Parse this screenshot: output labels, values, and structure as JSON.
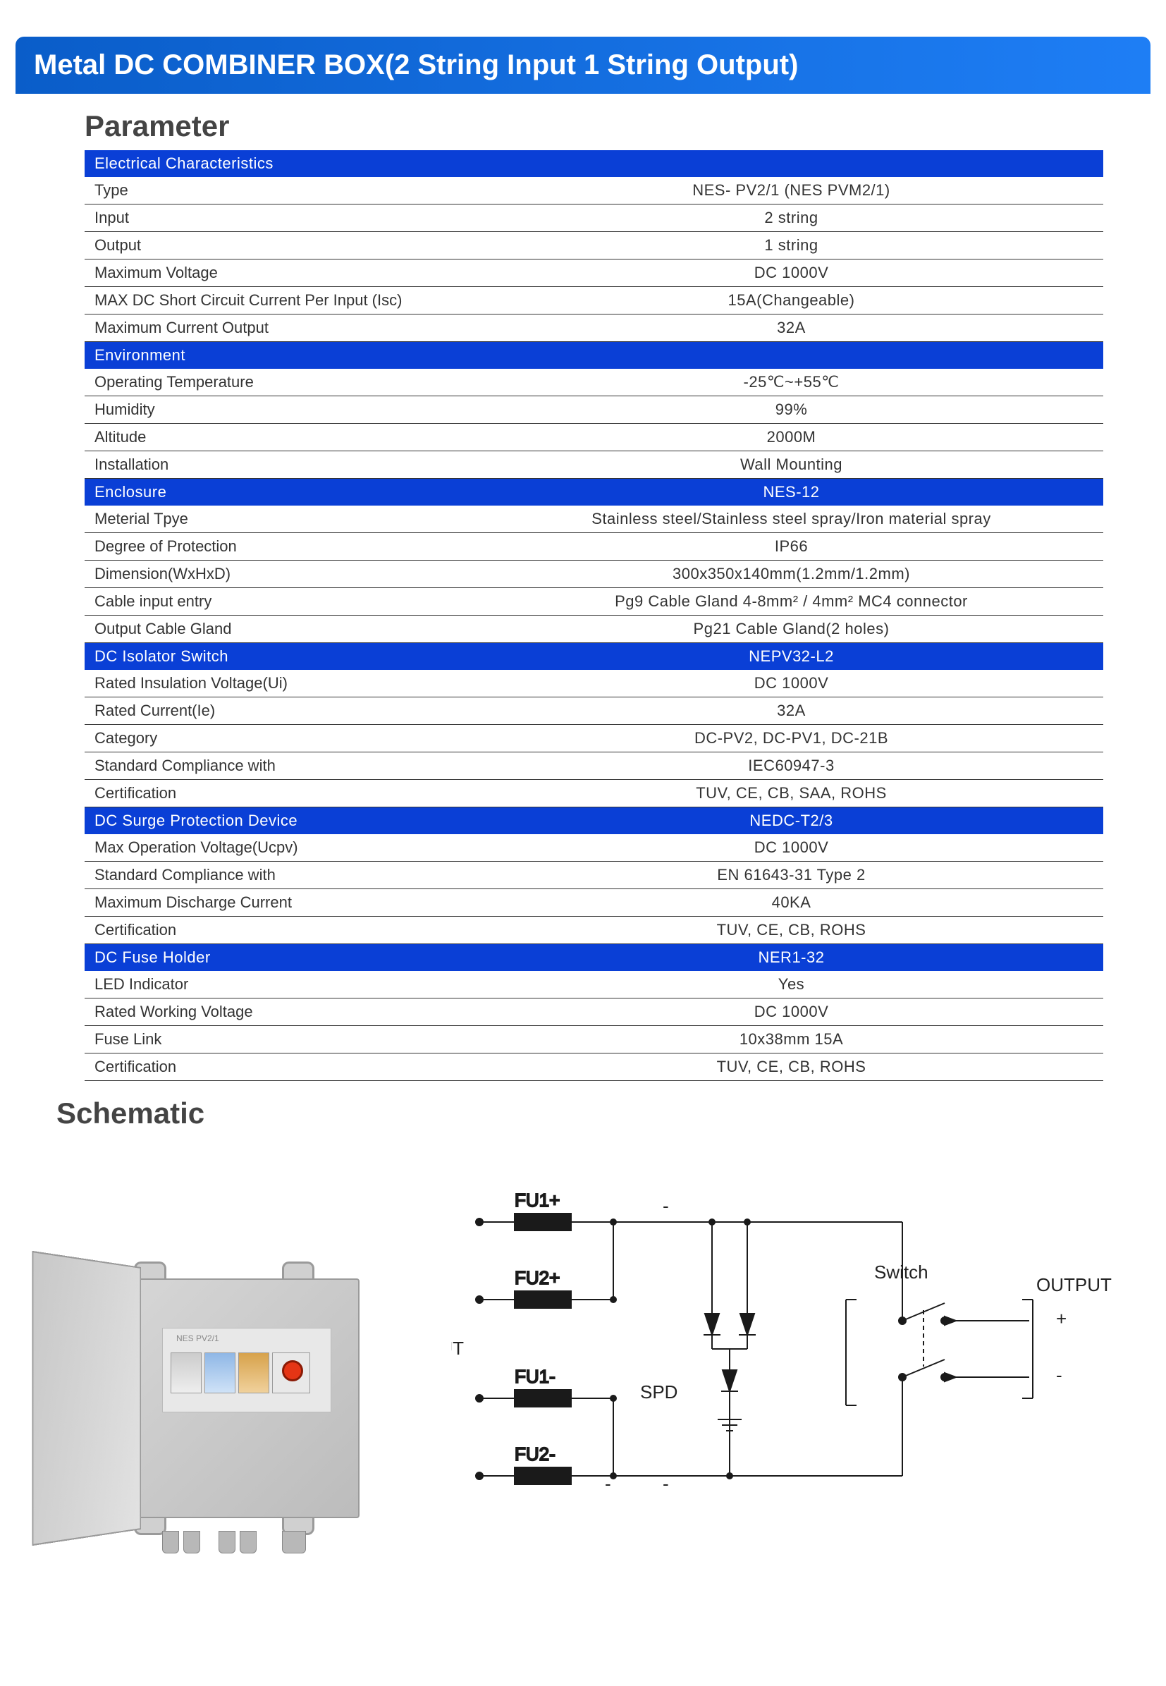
{
  "title": "Metal DC COMBINER BOX(2 String Input 1 String Output)",
  "headings": {
    "parameter": "Parameter",
    "schematic": "Schematic"
  },
  "colors": {
    "title_bg_start": "#0a5dc9",
    "title_bg_end": "#1e7ef5",
    "category_bg": "#0a3fd6",
    "category_fg": "#ffffff",
    "row_border": "#333333",
    "text": "#333333",
    "page_bg": "#ffffff"
  },
  "sections": [
    {
      "category": "Electrical Characteristics",
      "category_right": "",
      "rows": [
        {
          "label": "Type",
          "value": "NES- PV2/1 (NES PVM2/1)"
        },
        {
          "label": "Input",
          "value": "2 string"
        },
        {
          "label": "Output",
          "value": "1 string"
        },
        {
          "label": "Maximum Voltage",
          "value": "DC 1000V"
        },
        {
          "label": "MAX DC Short Circuit Current Per Input (Isc)",
          "value": "15A(Changeable)"
        },
        {
          "label": "Maximum Current Output",
          "value": "32A"
        }
      ]
    },
    {
      "category": "Environment",
      "category_right": "",
      "rows": [
        {
          "label": "Operating Temperature",
          "value": "-25℃~+55℃"
        },
        {
          "label": "Humidity",
          "value": "99%"
        },
        {
          "label": "Altitude",
          "value": "2000M"
        },
        {
          "label": "Installation",
          "value": "Wall Mounting"
        }
      ]
    },
    {
      "category": "Enclosure",
      "category_right": "NES-12",
      "rows": [
        {
          "label": "Meterial Tpye",
          "value": "Stainless steel/Stainless steel spray/Iron material spray"
        },
        {
          "label": "Degree of Protection",
          "value": "IP66"
        },
        {
          "label": "Dimension(WxHxD)",
          "value": "300x350x140mm(1.2mm/1.2mm)"
        },
        {
          "label": "Cable input entry",
          "value": "Pg9 Cable Gland 4-8mm² / 4mm² MC4 connector"
        },
        {
          "label": "Output Cable Gland",
          "value": "Pg21 Cable Gland(2 holes)"
        }
      ]
    },
    {
      "category": "DC Isolator Switch",
      "category_right": "NEPV32-L2",
      "rows": [
        {
          "label": "Rated Insulation Voltage(Ui)",
          "value": "DC 1000V"
        },
        {
          "label": "Rated Current(Ie)",
          "value": "32A"
        },
        {
          "label": "Category",
          "value": "DC-PV2, DC-PV1, DC-21B"
        },
        {
          "label": "Standard Compliance with",
          "value": "IEC60947-3"
        },
        {
          "label": "Certification",
          "value": "TUV, CE, CB, SAA, ROHS"
        }
      ]
    },
    {
      "category": "DC Surge Protection Device",
      "category_right": "NEDC-T2/3",
      "rows": [
        {
          "label": "Max Operation Voltage(Ucpv)",
          "value": "DC 1000V"
        },
        {
          "label": "Standard Compliance with",
          "value": "EN 61643-31 Type 2"
        },
        {
          "label": "Maximum Discharge Current",
          "value": "40KA"
        },
        {
          "label": "Certification",
          "value": "TUV, CE, CB, ROHS"
        }
      ]
    },
    {
      "category": "DC Fuse Holder",
      "category_right": "NER1-32",
      "rows": [
        {
          "label": "LED Indicator",
          "value": "Yes"
        },
        {
          "label": "Rated Working Voltage",
          "value": "DC 1000V"
        },
        {
          "label": "Fuse Link",
          "value": "10x38mm 15A"
        },
        {
          "label": "Certification",
          "value": "TUV, CE, CB, ROHS"
        }
      ]
    }
  ],
  "schematic": {
    "input_label": "INPUT",
    "spd_label": "SPD",
    "switch_label": "Switch",
    "output_label": "OUTPUT",
    "fuses": [
      "FU1+",
      "FU2+",
      "FU1-",
      "FU2-"
    ],
    "plus": "+",
    "minus": "-",
    "line_color": "#1a1a1a",
    "fuse_fill": "#1a1a1a",
    "fontsize": 26
  },
  "photo_label": "NES PV2/1"
}
